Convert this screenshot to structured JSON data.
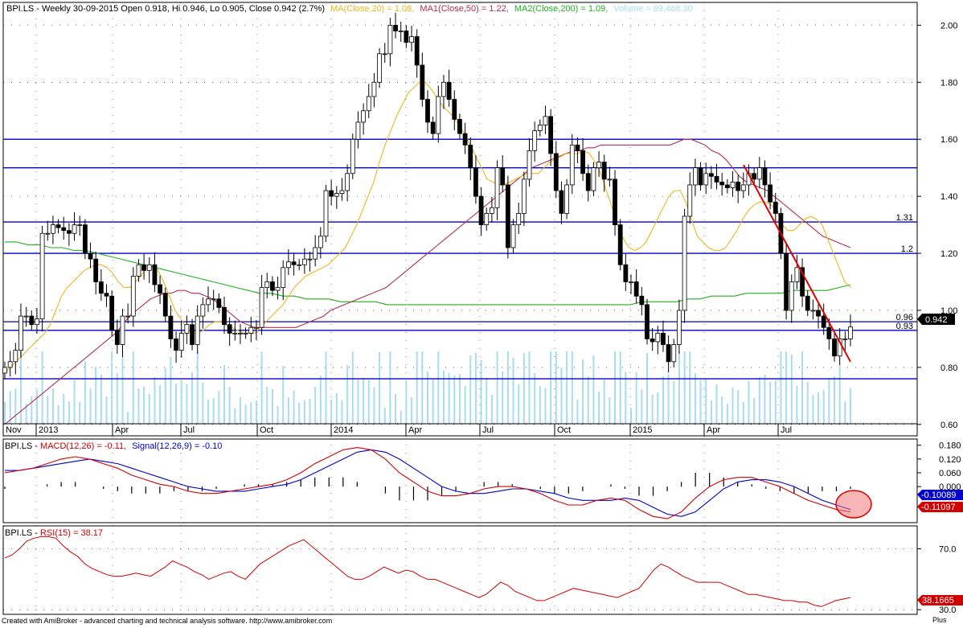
{
  "header": {
    "main": "BPI.LS - Weekly 30-09-2015 Open 0.918, Hi 0.946, Lo 0.905, Close 0.942 (2.7%)",
    "ma": "MA(Close,20) = 1.08,",
    "ma1": "MA1(Close,50) = 1.22,",
    "ma2": "MA2(Close,200) = 1.09,",
    "vol": "Volume = 89,468.30"
  },
  "macd_header": {
    "sym": "BPI.LS - ",
    "macd": "MACD(12,26) = -0.11,",
    "signal": "Signal(12,26,9) = -0.10"
  },
  "rsi_header": {
    "sym": "BPI.LS - ",
    "rsi": "RSI(15) = 38.17"
  },
  "price_badge": "0.942",
  "macd_badge_signal": "-0.10089",
  "macd_badge_macd": "-0.11097",
  "rsi_badge": "38.1665",
  "footer": "Created with AmiBroker - advanced charting and technical analysis software. http://www.amibroker.com",
  "brand": "Plus",
  "colors": {
    "ma": "#e8b820",
    "ma1": "#b03050",
    "ma2": "#20b020",
    "volume": "#a8dcf0",
    "support": "#0000c8",
    "trend": "#e00000",
    "macd": "#d00000",
    "signal": "#0000d0",
    "rsi": "#d00000"
  },
  "chart_data": [
    {
      "type": "candlestick",
      "title": "BPI.LS - Weekly",
      "x_ticks": [
        "Nov",
        "2013",
        "Apr",
        "Jul",
        "Oct",
        "2014",
        "Apr",
        "Jul",
        "Oct",
        "2015",
        "Apr",
        "Jul"
      ],
      "y_ticks": [
        "0.60",
        "0.80",
        "1.00",
        "1.20",
        "1.40",
        "1.60",
        "1.80",
        "2.00"
      ],
      "ylim": [
        0.56,
        2.08
      ],
      "close": [
        0.8,
        0.82,
        0.86,
        0.98,
        0.98,
        0.95,
        0.97,
        1.27,
        1.27,
        1.3,
        1.29,
        1.28,
        1.27,
        1.3,
        1.3,
        1.2,
        1.18,
        1.1,
        1.06,
        1.05,
        0.93,
        0.88,
        0.98,
        0.98,
        1.12,
        1.16,
        1.14,
        1.16,
        1.09,
        1.06,
        0.98,
        0.9,
        0.86,
        0.92,
        0.95,
        0.88,
        0.98,
        1.02,
        1.04,
        1.04,
        1.01,
        0.95,
        0.92,
        0.92,
        0.92,
        0.92,
        0.94,
        0.94,
        1.08,
        1.1,
        1.07,
        1.08,
        1.15,
        1.17,
        1.16,
        1.16,
        1.18,
        1.18,
        1.22,
        1.26,
        1.42,
        1.4,
        1.41,
        1.42,
        1.48,
        1.6,
        1.66,
        1.7,
        1.75,
        1.8,
        1.9,
        1.9,
        2.0,
        1.98,
        1.98,
        1.94,
        1.96,
        1.86,
        1.74,
        1.66,
        1.62,
        1.75,
        1.8,
        1.74,
        1.67,
        1.62,
        1.58,
        1.5,
        1.4,
        1.3,
        1.34,
        1.36,
        1.5,
        1.44,
        1.22,
        1.3,
        1.34,
        1.46,
        1.56,
        1.63,
        1.65,
        1.68,
        1.55,
        1.42,
        1.34,
        1.44,
        1.58,
        1.56,
        1.48,
        1.42,
        1.5,
        1.52,
        1.46,
        1.46,
        1.3,
        1.16,
        1.1,
        1.1,
        1.05,
        1.02,
        0.9,
        0.89,
        0.92,
        0.88,
        0.82,
        0.88,
        1.0,
        1.33,
        1.44,
        1.5,
        1.44,
        1.48,
        1.47,
        1.45,
        1.44,
        1.43,
        1.45,
        1.42,
        1.44,
        1.48,
        1.46,
        1.5,
        1.44,
        1.38,
        1.34,
        1.2,
        1.0,
        1.1,
        1.15,
        1.05,
        1.0,
        1.0,
        0.98,
        0.94,
        0.9,
        0.84,
        0.9,
        0.9,
        0.942
      ],
      "ma20": [
        0.78,
        0.8,
        0.82,
        0.84,
        0.86,
        0.88,
        0.9,
        0.92,
        0.95,
        1.0,
        1.05,
        1.08,
        1.1,
        1.12,
        1.14,
        1.15,
        1.16,
        1.16,
        1.15,
        1.13,
        1.1,
        1.08,
        1.08,
        1.1,
        1.12,
        1.15,
        1.15,
        1.14,
        1.1,
        1.05,
        1.0,
        0.97,
        0.94,
        0.92,
        0.92,
        0.93,
        0.95,
        0.96,
        0.96,
        0.95,
        0.94,
        0.93,
        0.92,
        0.92,
        0.92,
        0.94,
        0.96,
        0.98,
        1.0,
        1.02,
        1.05,
        1.08,
        1.1,
        1.12,
        1.13,
        1.14,
        1.15,
        1.16,
        1.18,
        1.2,
        1.22,
        1.26,
        1.3,
        1.35,
        1.4,
        1.45,
        1.52,
        1.58,
        1.63,
        1.68,
        1.72,
        1.76,
        1.78,
        1.8,
        1.8,
        1.78,
        1.75,
        1.72,
        1.7,
        1.68,
        1.65,
        1.62,
        1.58,
        1.54,
        1.5,
        1.46,
        1.45,
        1.44,
        1.44,
        1.45,
        1.46,
        1.47,
        1.48,
        1.48,
        1.48,
        1.5,
        1.52,
        1.53,
        1.54,
        1.55,
        1.55,
        1.55,
        1.56,
        1.55,
        1.52,
        1.48,
        1.42,
        1.36,
        1.3,
        1.25,
        1.22,
        1.21,
        1.22,
        1.24,
        1.28,
        1.32,
        1.36,
        1.4,
        1.42,
        1.42,
        1.38,
        1.32,
        1.26,
        1.24,
        1.22,
        1.21,
        1.21,
        1.22,
        1.25,
        1.28,
        1.32,
        1.35,
        1.37,
        1.38,
        1.38,
        1.37,
        1.35,
        1.3,
        1.28,
        1.28,
        1.3,
        1.32,
        1.33,
        1.32,
        1.3,
        1.25,
        1.2,
        1.15,
        1.1,
        1.08
      ],
      "ma50": [
        0.6,
        0.62,
        0.64,
        0.66,
        0.68,
        0.7,
        0.72,
        0.74,
        0.76,
        0.78,
        0.8,
        0.82,
        0.84,
        0.86,
        0.88,
        0.9,
        0.92,
        0.95,
        0.98,
        1.0,
        1.02,
        1.04,
        1.05,
        1.06,
        1.06,
        1.07,
        1.07,
        1.06,
        1.06,
        1.05,
        1.04,
        1.02,
        1.0,
        0.98,
        0.96,
        0.95,
        0.94,
        0.94,
        0.94,
        0.94,
        0.94,
        0.94,
        0.94,
        0.95,
        0.96,
        0.97,
        0.98,
        1.0,
        1.01,
        1.02,
        1.03,
        1.04,
        1.05,
        1.06,
        1.07,
        1.08,
        1.1,
        1.12,
        1.14,
        1.16,
        1.18,
        1.2,
        1.22,
        1.24,
        1.26,
        1.28,
        1.3,
        1.32,
        1.34,
        1.36,
        1.38,
        1.4,
        1.42,
        1.44,
        1.46,
        1.48,
        1.5,
        1.51,
        1.52,
        1.53,
        1.54,
        1.55,
        1.56,
        1.56,
        1.57,
        1.57,
        1.58,
        1.58,
        1.58,
        1.58,
        1.58,
        1.58,
        1.58,
        1.58,
        1.58,
        1.58,
        1.58,
        1.59,
        1.6,
        1.6,
        1.59,
        1.58,
        1.56,
        1.55,
        1.53,
        1.5,
        1.47,
        1.45,
        1.44,
        1.43,
        1.42,
        1.4,
        1.38,
        1.36,
        1.34,
        1.32,
        1.3,
        1.28,
        1.26,
        1.25,
        1.24,
        1.23,
        1.22
      ],
      "ma200": [
        1.24,
        1.24,
        1.23,
        1.23,
        1.22,
        1.22,
        1.21,
        1.21,
        1.2,
        1.19,
        1.18,
        1.17,
        1.16,
        1.15,
        1.14,
        1.13,
        1.12,
        1.11,
        1.1,
        1.09,
        1.08,
        1.07,
        1.06,
        1.06,
        1.05,
        1.05,
        1.04,
        1.04,
        1.04,
        1.03,
        1.03,
        1.03,
        1.03,
        1.02,
        1.02,
        1.02,
        1.02,
        1.02,
        1.02,
        1.02,
        1.02,
        1.02,
        1.02,
        1.02,
        1.02,
        1.02,
        1.02,
        1.02,
        1.02,
        1.02,
        1.02,
        1.02,
        1.02,
        1.02,
        1.02,
        1.03,
        1.03,
        1.03,
        1.03,
        1.04,
        1.04,
        1.05,
        1.05,
        1.05,
        1.06,
        1.06,
        1.06,
        1.06,
        1.07,
        1.07,
        1.07,
        1.07,
        1.08,
        1.09
      ],
      "levels": [
        {
          "y": 1.6,
          "label": ""
        },
        {
          "y": 1.5,
          "label": ""
        },
        {
          "y": 1.31,
          "label": "1.31"
        },
        {
          "y": 1.2,
          "label": "1.2"
        },
        {
          "y": 0.96,
          "label": "0.96"
        },
        {
          "y": 0.93,
          "label": "0.93"
        },
        {
          "y": 0.76,
          "label": ""
        }
      ],
      "trendline": {
        "from": [
          1.51,
          0.6
        ],
        "to": [
          0.82,
          1.0
        ]
      }
    },
    {
      "type": "line",
      "title": "MACD(12,26)",
      "y_ticks": [
        "0.180",
        "0.120",
        "0.060",
        "0.000"
      ],
      "ylim": [
        -0.15,
        0.2
      ],
      "series": [
        {
          "name": "MACD(12,26)",
          "values": [
            0.06,
            0.07,
            0.08,
            0.1,
            0.12,
            0.13,
            0.12,
            0.1,
            0.08,
            0.05,
            0.03,
            0.01,
            0.0,
            -0.02,
            -0.03,
            -0.03,
            -0.02,
            -0.01,
            0.0,
            0.01,
            0.03,
            0.06,
            0.1,
            0.13,
            0.16,
            0.17,
            0.16,
            0.12,
            0.06,
            0.02,
            -0.02,
            -0.04,
            -0.04,
            -0.03,
            -0.01,
            0.0,
            0.0,
            -0.01,
            -0.03,
            -0.06,
            -0.08,
            -0.08,
            -0.06,
            -0.05,
            -0.06,
            -0.1,
            -0.13,
            -0.14,
            -0.11,
            -0.05,
            0.0,
            0.03,
            0.04,
            0.04,
            0.02,
            0.0,
            -0.03,
            -0.06,
            -0.08,
            -0.1,
            -0.11
          ]
        },
        {
          "name": "Signal(12,26,9)",
          "values": [
            0.07,
            0.07,
            0.08,
            0.09,
            0.1,
            0.11,
            0.12,
            0.11,
            0.1,
            0.08,
            0.06,
            0.04,
            0.02,
            0.0,
            -0.01,
            -0.02,
            -0.02,
            -0.02,
            -0.01,
            0.0,
            0.01,
            0.03,
            0.06,
            0.09,
            0.12,
            0.15,
            0.16,
            0.15,
            0.12,
            0.08,
            0.04,
            0.0,
            -0.02,
            -0.03,
            -0.03,
            -0.02,
            -0.01,
            -0.01,
            -0.02,
            -0.03,
            -0.05,
            -0.06,
            -0.06,
            -0.06,
            -0.05,
            -0.06,
            -0.09,
            -0.12,
            -0.13,
            -0.11,
            -0.06,
            -0.01,
            0.02,
            0.03,
            0.03,
            0.02,
            0.0,
            -0.03,
            -0.06,
            -0.08,
            -0.1
          ]
        }
      ],
      "histogram": [
        -0.01,
        0.0,
        0.0,
        0.01,
        0.02,
        0.02,
        0.0,
        -0.01,
        -0.02,
        -0.03,
        -0.03,
        -0.03,
        -0.02,
        -0.02,
        -0.02,
        -0.01,
        0.0,
        0.01,
        0.01,
        0.01,
        0.02,
        0.03,
        0.04,
        0.04,
        0.04,
        0.02,
        0.0,
        -0.03,
        -0.06,
        -0.06,
        -0.06,
        -0.04,
        -0.02,
        0.0,
        0.02,
        0.02,
        0.01,
        0.0,
        -0.01,
        -0.03,
        -0.03,
        -0.02,
        0.0,
        0.01,
        -0.01,
        -0.04,
        -0.04,
        -0.02,
        0.02,
        0.06,
        0.06,
        0.04,
        0.02,
        0.01,
        -0.01,
        -0.02,
        -0.03,
        -0.03,
        -0.02,
        -0.02,
        -0.01
      ]
    },
    {
      "type": "line",
      "title": "RSI(15)",
      "y_ticks": [
        "70.0",
        "30.0"
      ],
      "ylim": [
        28,
        84
      ],
      "series": [
        {
          "name": "RSI(15)",
          "values": [
            64,
            66,
            70,
            75,
            77,
            78,
            78,
            77,
            72,
            68,
            65,
            60,
            57,
            55,
            53,
            52,
            52,
            53,
            54,
            53,
            52,
            55,
            58,
            62,
            60,
            58,
            55,
            53,
            50,
            52,
            54,
            55,
            52,
            50,
            55,
            60,
            63,
            66,
            69,
            72,
            74,
            76,
            72,
            68,
            64,
            60,
            56,
            52,
            50,
            50,
            52,
            55,
            58,
            56,
            54,
            56,
            55,
            52,
            50,
            50,
            48,
            46,
            44,
            42,
            40,
            38,
            40,
            44,
            48,
            46,
            42,
            40,
            38,
            36,
            36,
            38,
            40,
            42,
            44,
            43,
            42,
            41,
            40,
            39,
            38,
            40,
            42,
            44,
            50,
            56,
            60,
            58,
            55,
            52,
            50,
            48,
            48,
            48,
            48,
            46,
            44,
            42,
            40,
            40,
            39,
            38,
            37,
            36,
            36,
            35,
            35,
            33,
            32,
            34,
            36,
            37,
            38
          ]
        }
      ]
    }
  ]
}
